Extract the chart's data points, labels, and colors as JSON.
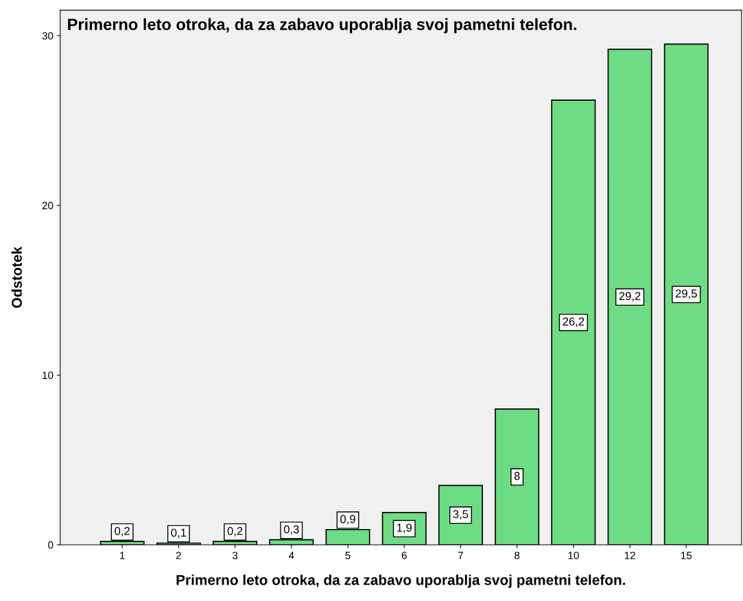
{
  "chart_data": {
    "type": "bar",
    "title": "Primerno leto otroka, da za zabavo uporablja svoj pametni telefon.",
    "xlabel": "Primerno leto otroka, da za zabavo uporablja svoj pametni telefon.",
    "ylabel": "Odstotek",
    "categories": [
      "1",
      "2",
      "3",
      "4",
      "5",
      "6",
      "7",
      "8",
      "10",
      "12",
      "15"
    ],
    "values": [
      0.2,
      0.1,
      0.2,
      0.3,
      0.9,
      1.9,
      3.5,
      8,
      26.2,
      29.2,
      29.5
    ],
    "value_labels": [
      "0,2",
      "0,1",
      "0,2",
      "0,3",
      "0,9",
      "1,9",
      "3,5",
      "8",
      "26,2",
      "29,2",
      "29,5"
    ],
    "color": "#6ddc84",
    "ylim": [
      0,
      31.5
    ],
    "yticks": [
      0,
      10,
      20,
      30
    ],
    "grid": false,
    "legend": false
  }
}
